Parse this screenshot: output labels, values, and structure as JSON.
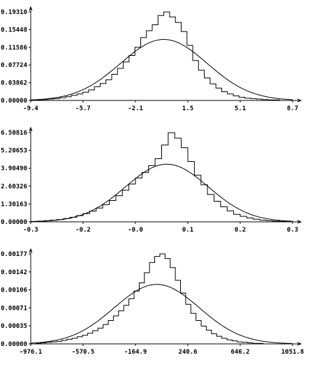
{
  "chart_data": [
    {
      "type": "histogram_with_normal_fit",
      "title": "",
      "xlabel": "",
      "ylabel": "",
      "xlim": [
        -9.4,
        8.7
      ],
      "ylim": [
        0,
        0.1931
      ],
      "xticks": [
        "-9.4",
        "-5.7",
        "-2.1",
        "1.5",
        "5.1",
        "8.7"
      ],
      "yticks": [
        "0.00000",
        "0.03862",
        "0.07724",
        "0.11586",
        "0.15448",
        "0.19310"
      ],
      "grid": false,
      "series": [
        {
          "kind": "step",
          "x": [
            -9.4,
            -9.0,
            -8.6,
            -8.2,
            -7.8,
            -7.4,
            -7.0,
            -6.6,
            -6.2,
            -5.8,
            -5.4,
            -5.0,
            -4.6,
            -4.2,
            -3.8,
            -3.4,
            -3.0,
            -2.6,
            -2.2,
            -1.8,
            -1.4,
            -1.0,
            -0.6,
            -0.2,
            0.2,
            0.6,
            1.0,
            1.4,
            1.8,
            2.2,
            2.6,
            3.0,
            3.4,
            3.8,
            4.2,
            4.6,
            5.0,
            5.4,
            5.8,
            6.2,
            6.6,
            7.0,
            7.4,
            7.8,
            8.2
          ],
          "values": [
            0.0,
            0.001,
            0.002,
            0.003,
            0.004,
            0.006,
            0.008,
            0.011,
            0.014,
            0.018,
            0.023,
            0.03,
            0.037,
            0.045,
            0.057,
            0.07,
            0.084,
            0.098,
            0.116,
            0.137,
            0.152,
            0.165,
            0.185,
            0.193,
            0.182,
            0.17,
            0.15,
            0.12,
            0.087,
            0.066,
            0.049,
            0.036,
            0.027,
            0.019,
            0.014,
            0.01,
            0.007,
            0.005,
            0.004,
            0.003,
            0.002,
            0.001,
            0.001,
            0.0,
            0.0
          ]
        },
        {
          "kind": "normal_curve",
          "mean": -0.2,
          "std": 3.0,
          "peak": 0.133
        }
      ]
    },
    {
      "type": "histogram_with_normal_fit",
      "title": "",
      "xlabel": "",
      "ylabel": "",
      "xlim": [
        -0.3,
        0.3
      ],
      "ylim": [
        0,
        6.50816
      ],
      "xticks": [
        "-0.3",
        "-0.2",
        "-0.0",
        "0.1",
        "0.2",
        "0.3"
      ],
      "yticks": [
        "0.00000",
        "1.30163",
        "2.60326",
        "3.90490",
        "5.20653",
        "6.50816"
      ],
      "grid": false,
      "series": [
        {
          "kind": "step",
          "x": [
            -0.3,
            -0.285,
            -0.27,
            -0.255,
            -0.24,
            -0.225,
            -0.21,
            -0.195,
            -0.18,
            -0.165,
            -0.15,
            -0.135,
            -0.12,
            -0.105,
            -0.09,
            -0.075,
            -0.06,
            -0.045,
            -0.03,
            -0.015,
            0.0,
            0.015,
            0.03,
            0.045,
            0.06,
            0.075,
            0.09,
            0.105,
            0.12,
            0.135,
            0.15,
            0.165,
            0.18,
            0.195,
            0.21,
            0.225,
            0.24,
            0.255,
            0.27,
            0.285
          ],
          "values": [
            0.03,
            0.05,
            0.08,
            0.12,
            0.17,
            0.24,
            0.33,
            0.45,
            0.6,
            0.78,
            1.0,
            1.25,
            1.55,
            1.9,
            2.3,
            2.75,
            3.2,
            3.6,
            4.1,
            4.6,
            5.6,
            6.5,
            6.1,
            5.4,
            4.4,
            3.4,
            2.7,
            2.0,
            1.5,
            1.1,
            0.8,
            0.55,
            0.4,
            0.28,
            0.19,
            0.12,
            0.08,
            0.05,
            0.03,
            0.02
          ]
        },
        {
          "kind": "normal_curve",
          "mean": 0.012,
          "std": 0.095,
          "peak": 4.2
        }
      ]
    },
    {
      "type": "histogram_with_normal_fit",
      "title": "",
      "xlabel": "",
      "ylabel": "",
      "xlim": [
        -976.1,
        1051.8
      ],
      "ylim": [
        0,
        0.00177
      ],
      "xticks": [
        "-976.1",
        "-570.5",
        "-164.9",
        "240.6",
        "646.2",
        "1051.8"
      ],
      "yticks": [
        "0.00000",
        "0.00035",
        "0.00071",
        "0.00106",
        "0.00142",
        "0.00177"
      ],
      "grid": false,
      "series": [
        {
          "kind": "step",
          "x": [
            -976.1,
            -936,
            -896,
            -856,
            -816,
            -776,
            -736,
            -696,
            -656,
            -616,
            -576,
            -536,
            -496,
            -456,
            -416,
            -376,
            -336,
            -296,
            -256,
            -216,
            -176,
            -136,
            -96,
            -56,
            -16,
            24,
            64,
            104,
            144,
            184,
            224,
            264,
            304,
            344,
            384,
            424,
            464,
            504,
            544,
            584,
            624,
            664,
            704,
            744,
            784,
            824,
            864,
            904,
            944,
            984
          ],
          "values": [
            0.0,
            1e-05,
            2e-05,
            3e-05,
            4e-05,
            5e-05,
            7e-05,
            9e-05,
            0.00011,
            0.00014,
            0.00017,
            0.00021,
            0.00026,
            0.00031,
            0.00038,
            0.00046,
            0.00055,
            0.00065,
            0.00076,
            0.00089,
            0.00104,
            0.0012,
            0.0014,
            0.0016,
            0.00172,
            0.00177,
            0.00168,
            0.0015,
            0.00125,
            0.001,
            0.00078,
            0.0006,
            0.00046,
            0.00035,
            0.00027,
            0.0002,
            0.00015,
            0.00011,
            8e-05,
            6e-05,
            4e-05,
            3e-05,
            2e-05,
            1e-05,
            1e-05,
            0.0,
            0.0,
            0.0,
            0.0,
            0.0
          ]
        },
        {
          "kind": "normal_curve",
          "mean": 0.0,
          "std": 330,
          "peak": 0.00117
        }
      ]
    }
  ]
}
